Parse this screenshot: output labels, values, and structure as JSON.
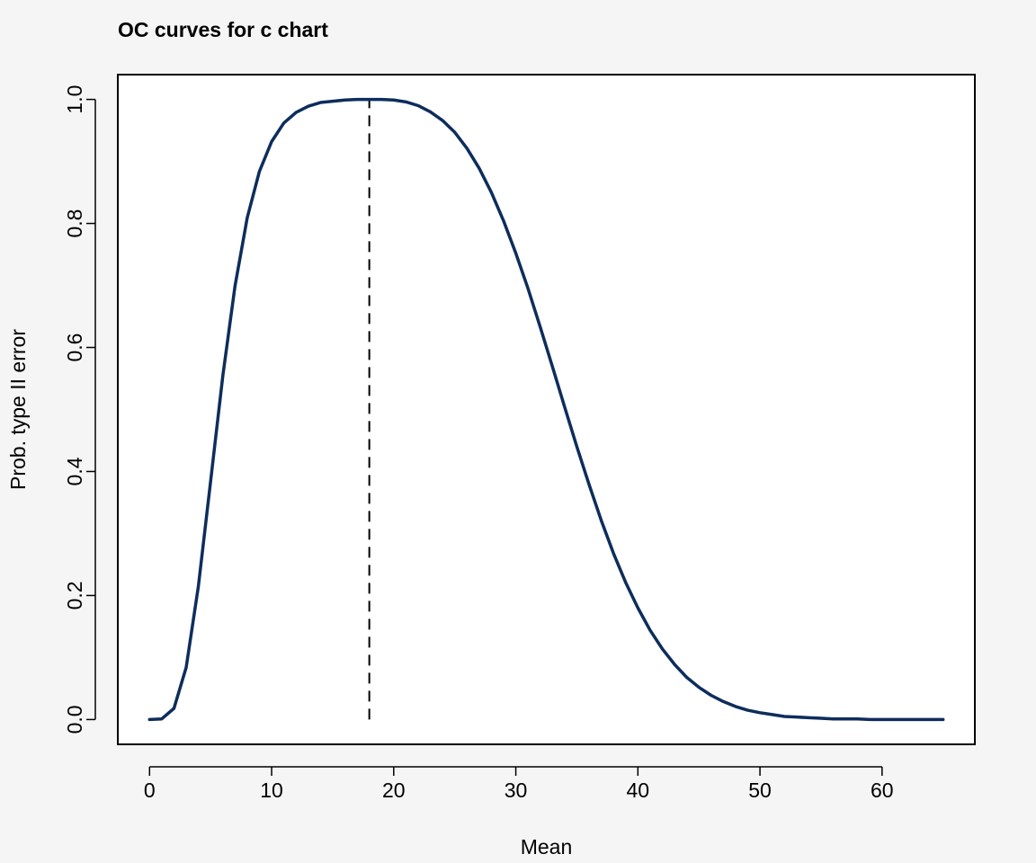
{
  "chart_data": {
    "type": "line",
    "title": "OC curves for c chart",
    "xlabel": "Mean",
    "ylabel": "Prob. type II error",
    "xlim": [
      -2.6,
      67.6
    ],
    "ylim": [
      -0.04,
      1.04
    ],
    "x_ticks": [
      0,
      10,
      20,
      30,
      40,
      50,
      60
    ],
    "x_tick_labels": [
      "0",
      "10",
      "20",
      "30",
      "40",
      "50",
      "60"
    ],
    "y_ticks": [
      0.0,
      0.2,
      0.4,
      0.6,
      0.8,
      1.0
    ],
    "y_tick_labels": [
      "0.0",
      "0.2",
      "0.4",
      "0.6",
      "0.8",
      "1.0"
    ],
    "grid": false,
    "series": [
      {
        "color": "#0d2d5c",
        "x": [
          0,
          1,
          2,
          3,
          4,
          5,
          6,
          7,
          8,
          9,
          10,
          11,
          12,
          13,
          14,
          15,
          16,
          17,
          18,
          19,
          20,
          21,
          22,
          23,
          24,
          25,
          26,
          27,
          28,
          29,
          30,
          31,
          32,
          33,
          34,
          35,
          36,
          37,
          38,
          39,
          40,
          41,
          42,
          43,
          44,
          45,
          46,
          47,
          48,
          49,
          50,
          51,
          52,
          53,
          54,
          55,
          56,
          57,
          58,
          59,
          60,
          61,
          62,
          63,
          64,
          65
        ],
        "y": [
          0,
          0.001,
          0.018,
          0.084,
          0.215,
          0.384,
          0.554,
          0.699,
          0.809,
          0.884,
          0.932,
          0.962,
          0.979,
          0.989,
          0.995,
          0.997,
          0.999,
          1.0,
          1.0,
          1.0,
          0.999,
          0.996,
          0.99,
          0.98,
          0.966,
          0.947,
          0.921,
          0.889,
          0.85,
          0.804,
          0.752,
          0.695,
          0.633,
          0.569,
          0.504,
          0.44,
          0.379,
          0.321,
          0.268,
          0.221,
          0.18,
          0.144,
          0.114,
          0.089,
          0.068,
          0.052,
          0.039,
          0.029,
          0.021,
          0.015,
          0.011,
          0.008,
          0.005,
          0.004,
          0.003,
          0.002,
          0.001,
          0.001,
          0.001,
          0,
          0,
          0,
          0,
          0,
          0,
          0
        ]
      }
    ],
    "reference_line": {
      "x": 18,
      "y_range": [
        0,
        1.0
      ],
      "style": "dashed",
      "color": "#000000"
    }
  }
}
